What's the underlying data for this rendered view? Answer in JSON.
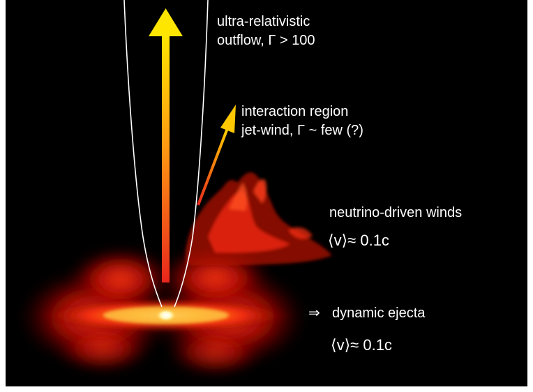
{
  "labels": {
    "outflow_line1": "ultra-relativistic",
    "outflow_line2": "outflow, Γ > 100",
    "interaction_line1": "interaction region",
    "interaction_line2": "jet-wind, Γ ~ few (?)",
    "winds_title": "neutrino-driven winds",
    "winds_velocity": "⟨v⟩≈ 0.1c",
    "ejecta_arrow": "⇒",
    "ejecta_title": "dynamic ejecta",
    "ejecta_velocity": "⟨v⟩≈ 0.1c"
  },
  "colors": {
    "background": "#000000",
    "arrow_top": "#ffe100",
    "arrow_bottom": "#e8281c",
    "ejecta_core": "#ffffff",
    "ejecta_mid": "#ff2a10",
    "ejecta_outer": "#7a0000",
    "cone_lines": "#ffffff",
    "text": "#ffffff"
  }
}
